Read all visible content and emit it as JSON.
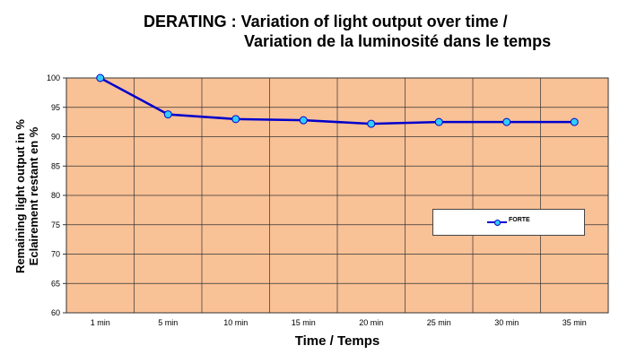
{
  "title_line1": "DERATING : Variation of light output over time /",
  "title_line2": "Variation de la luminosité dans le temps",
  "chart_data": {
    "type": "line",
    "categories": [
      "1 min",
      "5 min",
      "10 min",
      "15 min",
      "20 min",
      "25 min",
      "30 min",
      "35 min"
    ],
    "series": [
      {
        "name": "FORTE",
        "values": [
          100,
          93.8,
          93.0,
          92.8,
          92.2,
          92.5,
          92.5,
          92.5
        ]
      }
    ],
    "xlabel": "Time / Temps",
    "ylabel_line1": "Remaining light output in %",
    "ylabel_line2": "Eclairement restant en %",
    "ylim": [
      60,
      100
    ],
    "yticks": [
      60,
      65,
      70,
      75,
      80,
      85,
      90,
      95,
      100
    ],
    "grid": true,
    "legend_position": "right",
    "colors": {
      "plot_bg": "#f9c196",
      "grid": "#333333",
      "line": "#0000cc",
      "marker": "#33ccff"
    }
  }
}
